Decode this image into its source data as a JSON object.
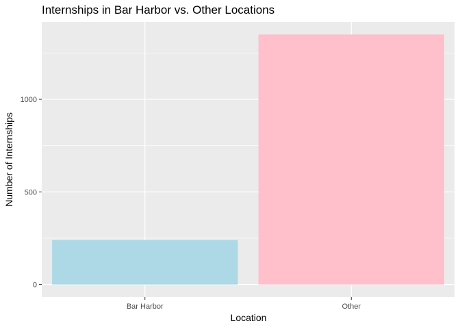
{
  "chart_data": {
    "type": "bar",
    "title": "Internships in Bar Harbor vs. Other Locations",
    "xlabel": "Location",
    "ylabel": "Number of Internships",
    "categories": [
      "Bar Harbor",
      "Other"
    ],
    "values": [
      240,
      1350
    ],
    "colors": [
      "#ADD8E6",
      "#FFC0CB"
    ],
    "ylim": [
      -68,
      1418
    ],
    "yticks": [
      0,
      500,
      1000
    ],
    "ytick_labels": [
      "0",
      "500",
      "1000"
    ],
    "grid": true,
    "legend": "none",
    "panel_background": "#EBEBEB",
    "grid_color": "#FFFFFF"
  }
}
